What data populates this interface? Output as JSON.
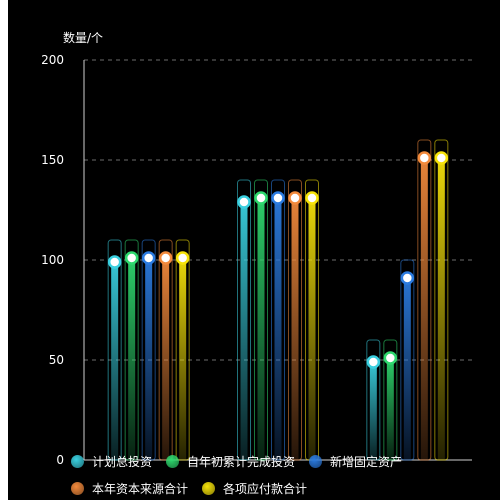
{
  "chart_data": {
    "type": "bar",
    "ylabel": "数量/个",
    "ylim": [
      0,
      200
    ],
    "yticks": [
      0,
      50,
      100,
      150,
      200
    ],
    "grid": true,
    "legend_position": "bottom",
    "categories": [
      "",
      "",
      ""
    ],
    "series": [
      {
        "name": "计划总投资",
        "color": "#3ad0e0",
        "values": [
          110,
          140,
          60
        ],
        "markers": [
          99,
          129,
          49
        ]
      },
      {
        "name": "自年初累计完成投资",
        "color": "#2fd86e",
        "values": [
          110,
          140,
          60
        ],
        "markers": [
          101,
          131,
          51
        ]
      },
      {
        "name": "新增固定资产",
        "color": "#2b7be0",
        "values": [
          110,
          140,
          100
        ],
        "markers": [
          101,
          131,
          91
        ]
      },
      {
        "name": "本年资本来源合计",
        "color": "#f28a3c",
        "values": [
          110,
          140,
          160
        ],
        "markers": [
          101,
          131,
          151
        ]
      },
      {
        "name": "各项应付款合计",
        "color": "#f5e20a",
        "values": [
          110,
          140,
          160
        ],
        "markers": [
          101,
          131,
          151
        ]
      }
    ]
  }
}
